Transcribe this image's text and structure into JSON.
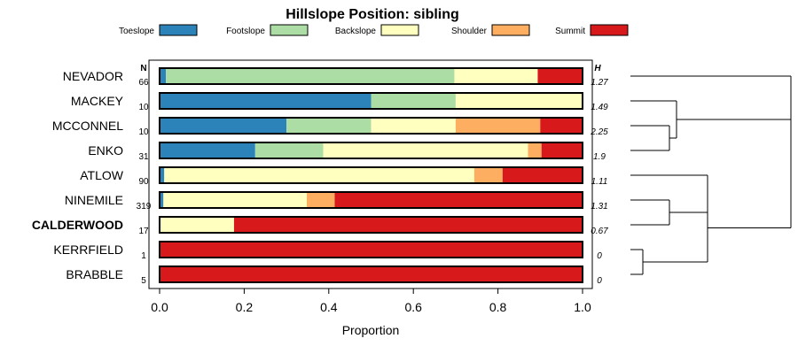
{
  "chart_data": {
    "type": "bar",
    "stacked": true,
    "horizontal": true,
    "title": "Hillslope Position: sibling",
    "xlabel": "Proportion",
    "xlim": [
      0,
      1
    ],
    "xticks": [
      "0.0",
      "0.2",
      "0.4",
      "0.6",
      "0.8",
      "1.0"
    ],
    "n_header": "N",
    "h_header": "H",
    "legend_position": "top",
    "series": [
      {
        "name": "Toeslope",
        "color": "#2b83ba"
      },
      {
        "name": "Footslope",
        "color": "#abdda4"
      },
      {
        "name": "Backslope",
        "color": "#ffffbf"
      },
      {
        "name": "Shoulder",
        "color": "#fdae61"
      },
      {
        "name": "Summit",
        "color": "#d7191c"
      }
    ],
    "rows": [
      {
        "label": "NEVADOR",
        "bold": false,
        "n": "66",
        "h": "1.27",
        "values": [
          0.015,
          0.682,
          0.197,
          0.0,
          0.106
        ]
      },
      {
        "label": "MACKEY",
        "bold": false,
        "n": "10",
        "h": "1.49",
        "values": [
          0.5,
          0.2,
          0.3,
          0.0,
          0.0
        ]
      },
      {
        "label": "MCCONNEL",
        "bold": false,
        "n": "10",
        "h": "2.25",
        "values": [
          0.3,
          0.2,
          0.2,
          0.2,
          0.1
        ]
      },
      {
        "label": "ENKO",
        "bold": false,
        "n": "31",
        "h": "1.9",
        "values": [
          0.226,
          0.161,
          0.484,
          0.032,
          0.097
        ]
      },
      {
        "label": "ATLOW",
        "bold": false,
        "n": "90",
        "h": "1.11",
        "values": [
          0.011,
          0.0,
          0.733,
          0.067,
          0.189
        ]
      },
      {
        "label": "NINEMILE",
        "bold": false,
        "n": "319",
        "h": "1.31",
        "values": [
          0.009,
          0.0,
          0.339,
          0.066,
          0.586
        ]
      },
      {
        "label": "CALDERWOOD",
        "bold": true,
        "n": "17",
        "h": "0.67",
        "values": [
          0.0,
          0.0,
          0.176,
          0.0,
          0.824
        ]
      },
      {
        "label": "KERRFIELD",
        "bold": false,
        "n": "1",
        "h": "0",
        "values": [
          0.0,
          0.0,
          0.0,
          0.0,
          1.0
        ]
      },
      {
        "label": "BRABBLE",
        "bold": false,
        "n": "5",
        "h": "0",
        "values": [
          0.0,
          0.0,
          0.0,
          0.0,
          1.0
        ]
      }
    ],
    "dendrogram": [
      {
        "a": "NEVADOR",
        "b": "MACKEY_MCCONNEL_ENKO"
      },
      {
        "a": "MACKEY",
        "b": "MCCONNEL_ENKO"
      },
      {
        "a": "MCCONNEL",
        "b": "ENKO"
      },
      {
        "a": "ATLOW",
        "b": "NINEMILE_CALDERWOOD"
      },
      {
        "a": "NINEMILE",
        "b": "CALDERWOOD"
      },
      {
        "a": "KERRFIELD",
        "b": "BRABBLE"
      }
    ]
  }
}
